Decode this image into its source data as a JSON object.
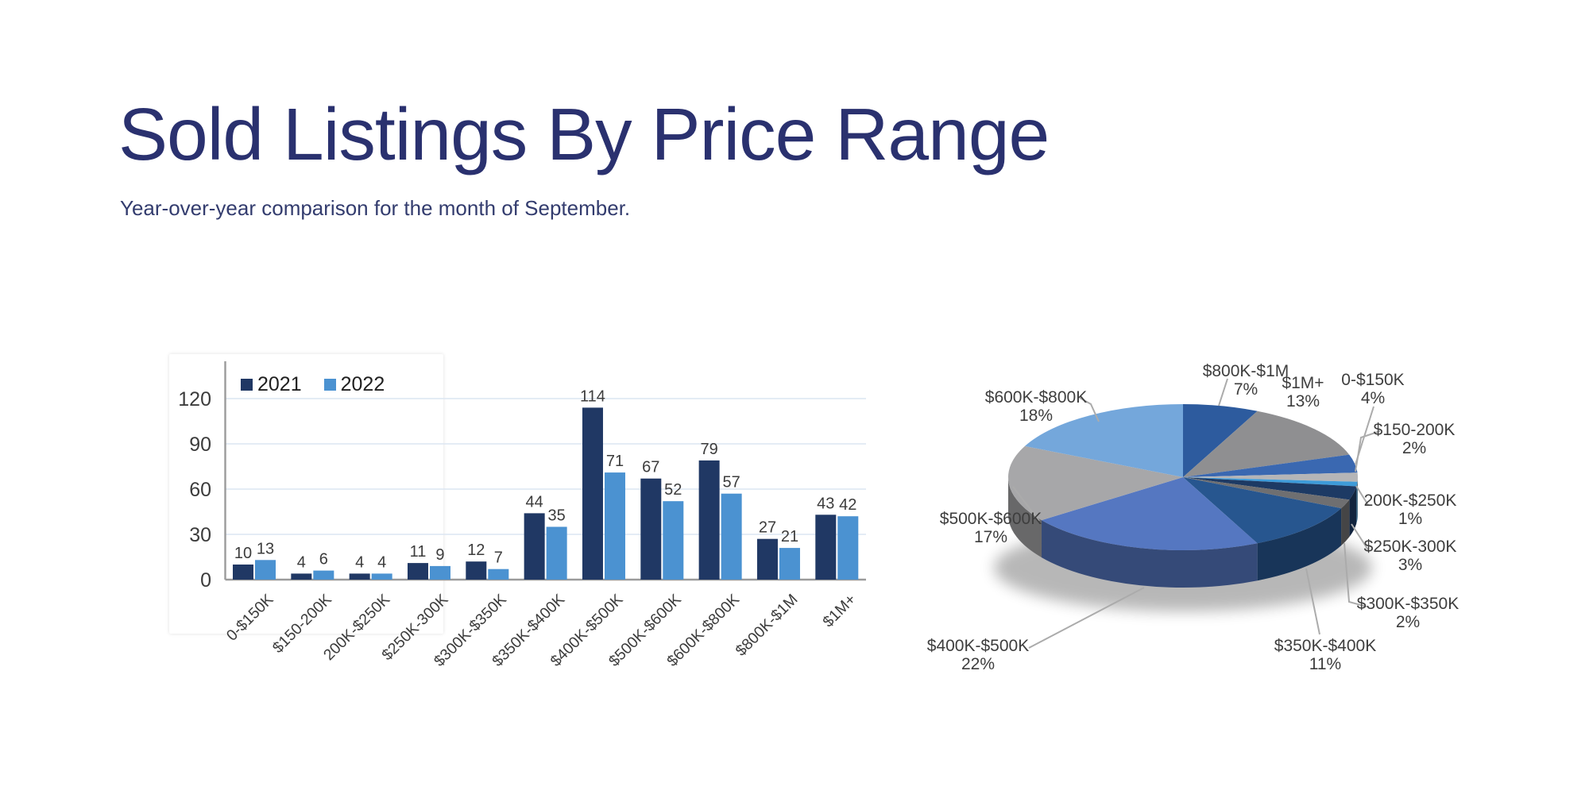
{
  "slide": {
    "title": "Sold Listings By Price Range",
    "subtitle": "Year-over-year comparison for the month of September."
  },
  "colors": {
    "title_text": "#2a316f",
    "axis_line": "#9b9b9b",
    "gridline": "#dce6f2",
    "chart_text": "#3c3c3c",
    "leader_line": "#ababab",
    "bar_2021": "#203864",
    "bar_2022": "#4b92d1"
  },
  "chart_data": [
    {
      "type": "bar",
      "title": "",
      "categories": [
        "0-$150K",
        "$150-200K",
        "200K-$250K",
        "$250K-300K",
        "$300K-$350K",
        "$350K-$400K",
        "$400K-$500K",
        "$500K-$600K",
        "$600K-$800K",
        "$800K-$1M",
        "$1M+"
      ],
      "series": [
        {
          "name": "2021",
          "color": "#203864",
          "values": [
            10,
            4,
            4,
            11,
            12,
            44,
            114,
            67,
            79,
            27,
            43
          ]
        },
        {
          "name": "2022",
          "color": "#4b92d1",
          "values": [
            13,
            6,
            4,
            9,
            7,
            35,
            71,
            52,
            57,
            21,
            42
          ]
        }
      ],
      "xlabel": "",
      "ylabel": "",
      "ylim": [
        0,
        120
      ],
      "yticks": [
        0,
        30,
        60,
        90,
        120
      ],
      "grid": "horizontal",
      "legend_position": "top-left",
      "value_labels": true
    },
    {
      "type": "pie",
      "effect": "3d",
      "direction": "clockwise",
      "start_angle_deg": 0,
      "labels": [
        "$800K-$1M",
        "$1M+",
        "0-$150K",
        "$150-200K",
        "200K-$250K",
        "$250K-300K",
        "$300K-$350K",
        "$350K-$400K",
        "$400K-$500K",
        "$500K-$600K",
        "$600K-$800K"
      ],
      "values_pct": [
        7,
        13,
        4,
        2,
        1,
        3,
        2,
        11,
        22,
        17,
        18
      ],
      "slice_colors": [
        "#2d5b9e",
        "#8f8f91",
        "#3a68b1",
        "#b5b5b7",
        "#3e9bd9",
        "#1d3a64",
        "#6f6f71",
        "#27568f",
        "#5577c1",
        "#a7a7a9",
        "#74a7db"
      ]
    }
  ]
}
